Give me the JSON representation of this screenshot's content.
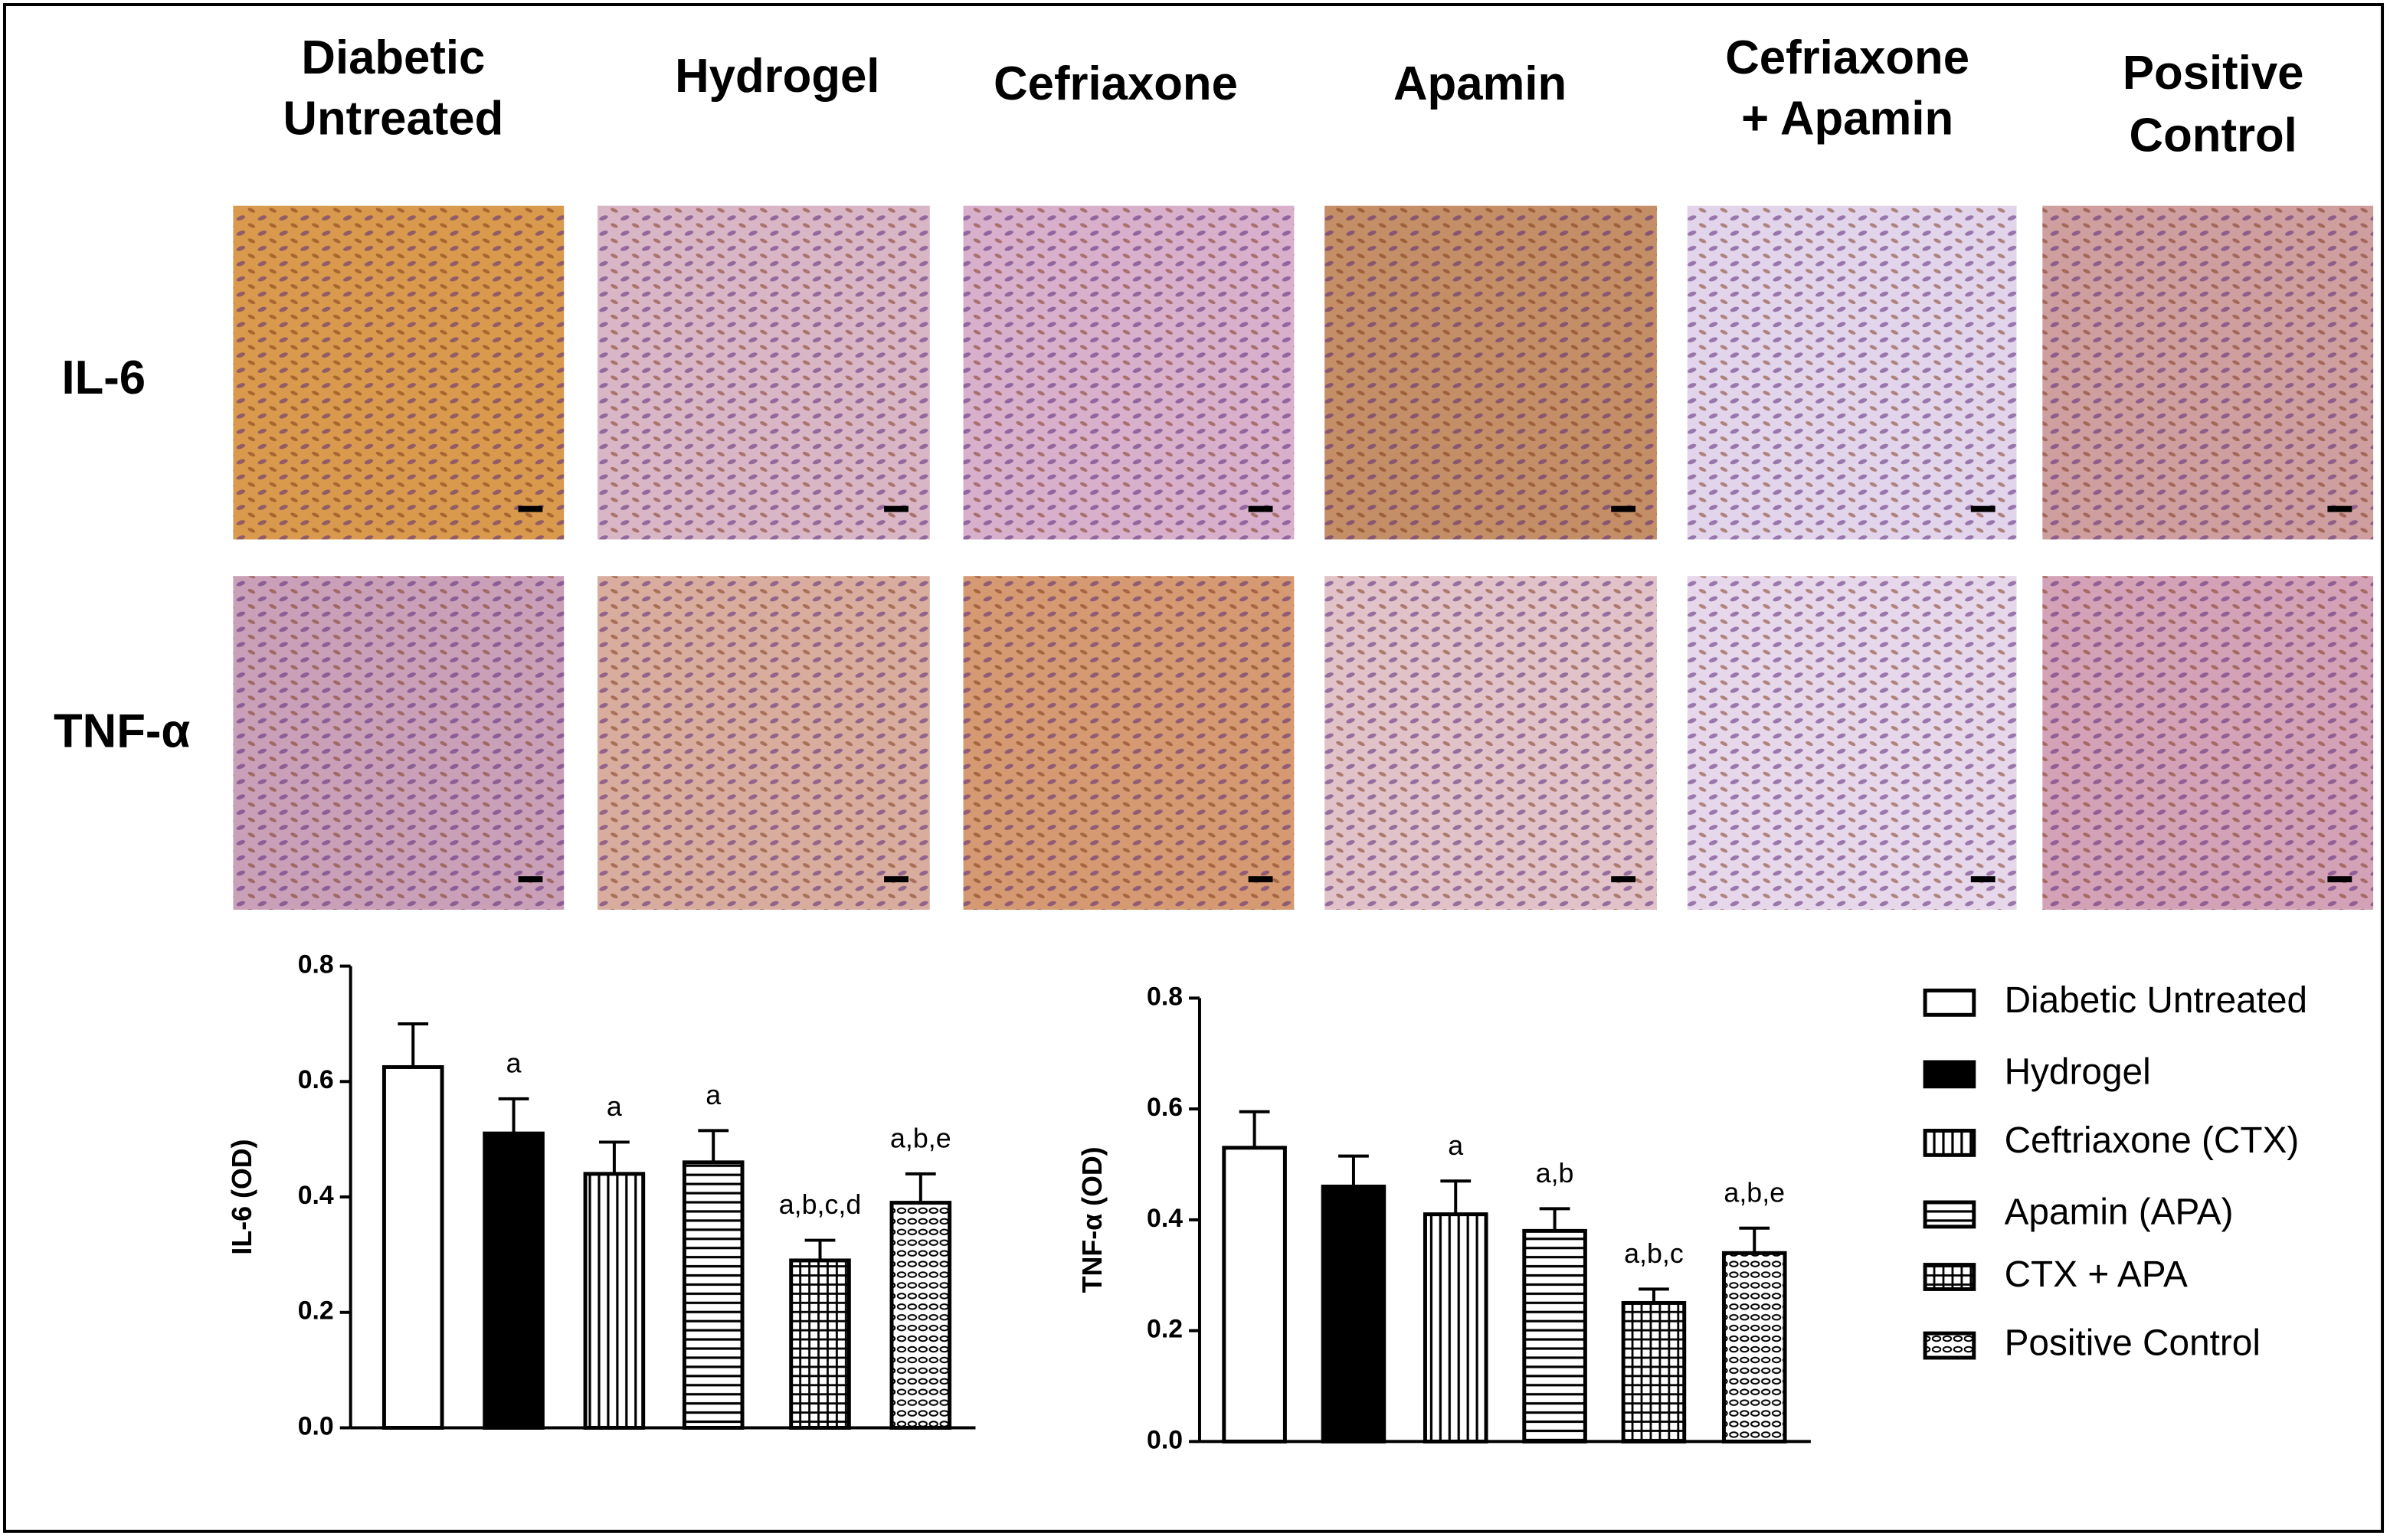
{
  "panel_columns": [
    [
      "Diabetic",
      "Untreated"
    ],
    [
      "Hydrogel"
    ],
    [
      "Cefriaxone"
    ],
    [
      "Apamin"
    ],
    [
      "Cefriaxone",
      "+ Apamin"
    ],
    [
      "Positive",
      "Control"
    ]
  ],
  "panel_rows": [
    "IL-6",
    "TNF-α"
  ],
  "legend": {
    "entries": [
      {
        "name": "Diabetic Untreated",
        "pattern": "none"
      },
      {
        "name": "Hydrogel",
        "pattern": "solid"
      },
      {
        "name": "Ceftriaxone (CTX)",
        "pattern": "vertical"
      },
      {
        "name": "Apamin (APA)",
        "pattern": "horizontal"
      },
      {
        "name": "CTX + APA",
        "pattern": "grid"
      },
      {
        "name": "Positive Control",
        "pattern": "dots"
      }
    ]
  },
  "chart_data": [
    {
      "type": "bar",
      "ylabel": "IL-6 (OD)",
      "ylim": [
        0,
        0.8
      ],
      "yticks": [
        {
          "value": 0,
          "label": "0.0"
        },
        {
          "value": 0.2,
          "label": "0.2"
        },
        {
          "value": 0.4,
          "label": "0.4"
        },
        {
          "value": 0.6,
          "label": "0.6"
        },
        0.8
      ],
      "values": [
        0.625,
        0.51,
        0.44,
        0.46,
        0.29,
        0.39
      ],
      "errors": [
        0.075,
        0.06,
        0.055,
        0.055,
        0.035,
        0.05
      ],
      "annotations": [
        null,
        "a",
        "a",
        "a",
        "a,b,c,d",
        "a,b,e"
      ]
    },
    {
      "type": "bar",
      "ylabel": "TNF-α (OD)",
      "ylim": [
        0,
        0.8
      ],
      "yticks": [
        {
          "value": 0,
          "label": "0.0"
        },
        {
          "value": 0.2,
          "label": "0.2"
        },
        {
          "value": 0.4,
          "label": "0.4"
        },
        {
          "value": 0.6,
          "label": "0.6"
        },
        0.8
      ],
      "values": [
        0.53,
        0.46,
        0.41,
        0.38,
        0.25,
        0.34
      ],
      "errors": [
        0.065,
        0.055,
        0.06,
        0.04,
        0.025,
        0.045
      ],
      "annotations": [
        null,
        null,
        "a",
        "a,b",
        "a,b,c",
        "a,b,e"
      ]
    }
  ]
}
